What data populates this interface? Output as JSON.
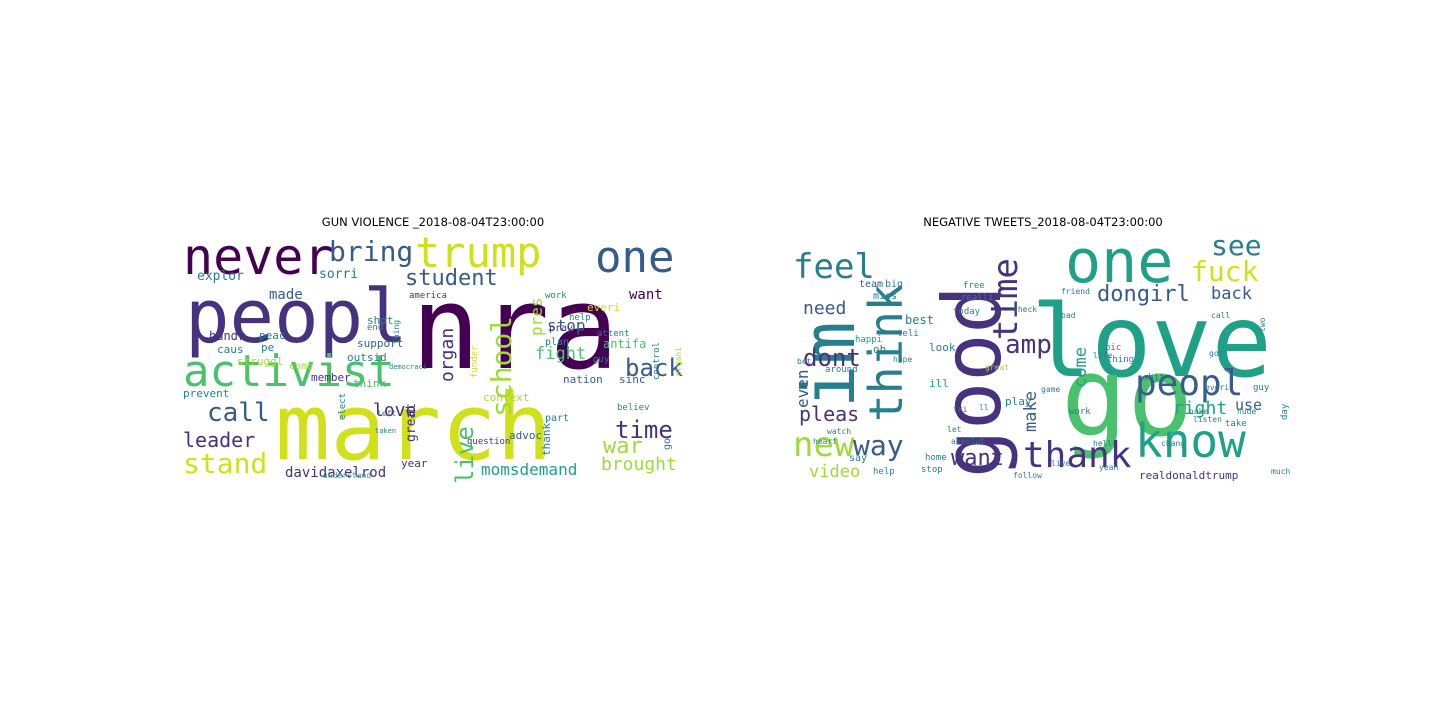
{
  "palette": {
    "v0": "#440154",
    "v1": "#46327e",
    "v2": "#365c8d",
    "v3": "#277f8e",
    "v4": "#1fa187",
    "v5": "#4ac16d",
    "v6": "#a0da39",
    "v7": "#d0e11c"
  },
  "panels": [
    {
      "title": "GUN VIOLENCE _2018-08-04T23:00:00",
      "words": [
        {
          "text": "nra",
          "size": 115,
          "color": "v0"
        },
        {
          "text": "march",
          "size": 92,
          "color": "v7"
        },
        {
          "text": "peopl",
          "size": 74,
          "color": "v1"
        },
        {
          "text": "activist",
          "size": 44,
          "color": "v5"
        },
        {
          "text": "never",
          "size": 50,
          "color": "v0"
        },
        {
          "text": "trump",
          "size": 42,
          "color": "v7"
        },
        {
          "text": "one",
          "size": 44,
          "color": "v2"
        },
        {
          "text": "bring",
          "size": 28,
          "color": "v2"
        },
        {
          "text": "student",
          "size": 22,
          "color": "v2"
        },
        {
          "text": "school",
          "size": 28,
          "color": "v6"
        },
        {
          "text": "back",
          "size": 24,
          "color": "v2"
        },
        {
          "text": "time",
          "size": 24,
          "color": "v1"
        },
        {
          "text": "call",
          "size": 26,
          "color": "v2"
        },
        {
          "text": "stand",
          "size": 28,
          "color": "v7"
        },
        {
          "text": "leader",
          "size": 20,
          "color": "v1"
        },
        {
          "text": "live",
          "size": 24,
          "color": "v5"
        },
        {
          "text": "war",
          "size": 22,
          "color": "v6"
        },
        {
          "text": "love",
          "size": 18,
          "color": "v1"
        },
        {
          "text": "fight",
          "size": 17,
          "color": "v5"
        },
        {
          "text": "stop",
          "size": 16,
          "color": "v2"
        },
        {
          "text": "organ",
          "size": 18,
          "color": "v1"
        },
        {
          "text": "brought",
          "size": 18,
          "color": "v6"
        },
        {
          "text": "momsdemand",
          "size": 16,
          "color": "v4"
        },
        {
          "text": "davidaxelrod",
          "size": 14,
          "color": "v1"
        },
        {
          "text": "made",
          "size": 14,
          "color": "v2"
        },
        {
          "text": "explor",
          "size": 13,
          "color": "v3"
        },
        {
          "text": "sorri",
          "size": 13,
          "color": "v3"
        },
        {
          "text": "want",
          "size": 14,
          "color": "v0"
        },
        {
          "text": "pres",
          "size": 16,
          "color": "v6"
        },
        {
          "text": "antifa",
          "size": 12,
          "color": "v5"
        },
        {
          "text": "shot",
          "size": 11,
          "color": "v3"
        },
        {
          "text": "hundr",
          "size": 12,
          "color": "v1"
        },
        {
          "text": "peac",
          "size": 11,
          "color": "v3"
        },
        {
          "text": "pe",
          "size": 11,
          "color": "v3"
        },
        {
          "text": "caus",
          "size": 11,
          "color": "v3"
        },
        {
          "text": "struggl",
          "size": 11,
          "color": "v6"
        },
        {
          "text": "prevent",
          "size": 11,
          "color": "v3"
        },
        {
          "text": "support",
          "size": 11,
          "color": "v2"
        },
        {
          "text": "outsid",
          "size": 11,
          "color": "v3"
        },
        {
          "text": "member",
          "size": 11,
          "color": "v1"
        },
        {
          "text": "think",
          "size": 11,
          "color": "v5"
        },
        {
          "text": "great",
          "size": 13,
          "color": "v1"
        },
        {
          "text": "year",
          "size": 11,
          "color": "v1"
        },
        {
          "text": "thank",
          "size": 11,
          "color": "v3"
        },
        {
          "text": "advoc",
          "size": 11,
          "color": "v2"
        },
        {
          "text": "nation",
          "size": 11,
          "color": "v2"
        },
        {
          "text": "sinc",
          "size": 11,
          "color": "v2"
        },
        {
          "text": "believ",
          "size": 9,
          "color": "v3"
        },
        {
          "text": "control",
          "size": 9,
          "color": "v3"
        },
        {
          "text": "context",
          "size": 11,
          "color": "v6"
        },
        {
          "text": "part",
          "size": 10,
          "color": "v3"
        },
        {
          "text": "plan",
          "size": 10,
          "color": "v3"
        },
        {
          "text": "pray",
          "size": 10,
          "color": "v1"
        },
        {
          "text": "help",
          "size": 9,
          "color": "v3"
        },
        {
          "text": "everi",
          "size": 11,
          "color": "v7"
        },
        {
          "text": "guy",
          "size": 9,
          "color": "v3"
        },
        {
          "text": "work",
          "size": 9,
          "color": "v3"
        },
        {
          "text": "america",
          "size": 9,
          "color": "v1"
        },
        {
          "text": "end",
          "size": 9,
          "color": "v3"
        },
        {
          "text": "come",
          "size": 10,
          "color": "v6"
        },
        {
          "text": "funder",
          "size": 9,
          "color": "v7"
        },
        {
          "text": "elect",
          "size": 9,
          "color": "v3"
        },
        {
          "text": "question",
          "size": 9,
          "color": "v1"
        },
        {
          "text": "understand",
          "size": 8,
          "color": "v4"
        },
        {
          "text": "left",
          "size": 8,
          "color": "v3"
        },
        {
          "text": "taken",
          "size": 7,
          "color": "v3"
        },
        {
          "text": "thing",
          "size": 8,
          "color": "v3"
        },
        {
          "text": "democraci",
          "size": 7,
          "color": "v3"
        },
        {
          "text": "go",
          "size": 10,
          "color": "v3"
        },
        {
          "text": "attent",
          "size": 9,
          "color": "v3"
        },
        {
          "text": "organi",
          "size": 8,
          "color": "v6"
        }
      ]
    },
    {
      "title": "NEGATIVE TWEETS_2018-08-04T23:00:00",
      "words": [
        {
          "text": "love",
          "size": 100,
          "color": "v4"
        },
        {
          "text": "go",
          "size": 110,
          "color": "v5"
        },
        {
          "text": "good",
          "size": 80,
          "color": "v1"
        },
        {
          "text": "im",
          "size": 72,
          "color": "v3"
        },
        {
          "text": "think",
          "size": 46,
          "color": "v3"
        },
        {
          "text": "one",
          "size": 60,
          "color": "v4"
        },
        {
          "text": "know",
          "size": 46,
          "color": "v4"
        },
        {
          "text": "thank",
          "size": 36,
          "color": "v1"
        },
        {
          "text": "peopl",
          "size": 36,
          "color": "v2"
        },
        {
          "text": "time",
          "size": 34,
          "color": "v1"
        },
        {
          "text": "feel",
          "size": 34,
          "color": "v3"
        },
        {
          "text": "new",
          "size": 34,
          "color": "v6"
        },
        {
          "text": "way",
          "size": 28,
          "color": "v2"
        },
        {
          "text": "see",
          "size": 28,
          "color": "v3"
        },
        {
          "text": "fuck",
          "size": 28,
          "color": "v7"
        },
        {
          "text": "dont",
          "size": 24,
          "color": "v1"
        },
        {
          "text": "amp",
          "size": 26,
          "color": "v1"
        },
        {
          "text": "want",
          "size": 22,
          "color": "v1"
        },
        {
          "text": "dongirl",
          "size": 22,
          "color": "v2"
        },
        {
          "text": "pleas",
          "size": 20,
          "color": "v1"
        },
        {
          "text": "need",
          "size": 18,
          "color": "v2"
        },
        {
          "text": "back",
          "size": 17,
          "color": "v2"
        },
        {
          "text": "right",
          "size": 18,
          "color": "v4"
        },
        {
          "text": "come",
          "size": 17,
          "color": "v4"
        },
        {
          "text": "make",
          "size": 17,
          "color": "v2"
        },
        {
          "text": "even",
          "size": 16,
          "color": "v2"
        },
        {
          "text": "video",
          "size": 17,
          "color": "v6"
        },
        {
          "text": "use",
          "size": 15,
          "color": "v2"
        },
        {
          "text": "realdonaldtrump",
          "size": 11,
          "color": "v1"
        },
        {
          "text": "best",
          "size": 12,
          "color": "v3"
        },
        {
          "text": "look",
          "size": 11,
          "color": "v3"
        },
        {
          "text": "play",
          "size": 11,
          "color": "v3"
        },
        {
          "text": "ill",
          "size": 11,
          "color": "v4"
        },
        {
          "text": "oh",
          "size": 11,
          "color": "v3"
        },
        {
          "text": "miss",
          "size": 10,
          "color": "v3"
        },
        {
          "text": "team",
          "size": 10,
          "color": "v2"
        },
        {
          "text": "big",
          "size": 10,
          "color": "v3"
        },
        {
          "text": "home",
          "size": 9,
          "color": "v3"
        },
        {
          "text": "stop",
          "size": 9,
          "color": "v3"
        },
        {
          "text": "say",
          "size": 10,
          "color": "v3"
        },
        {
          "text": "help",
          "size": 9,
          "color": "v3"
        },
        {
          "text": "today",
          "size": 9,
          "color": "v3"
        },
        {
          "text": "happi",
          "size": 9,
          "color": "v4"
        },
        {
          "text": "teli",
          "size": 9,
          "color": "v3"
        },
        {
          "text": "pic",
          "size": 9,
          "color": "v3"
        },
        {
          "text": "thing",
          "size": 9,
          "color": "v3"
        },
        {
          "text": "work",
          "size": 9,
          "color": "v3"
        },
        {
          "text": "shit",
          "size": 9,
          "color": "v3"
        },
        {
          "text": "take",
          "size": 9,
          "color": "v3"
        },
        {
          "text": "guy",
          "size": 9,
          "color": "v3"
        },
        {
          "text": "day",
          "size": 9,
          "color": "v3"
        },
        {
          "text": "heart",
          "size": 8,
          "color": "v3"
        },
        {
          "text": "around",
          "size": 9,
          "color": "v3"
        },
        {
          "text": "free",
          "size": 9,
          "color": "v3"
        },
        {
          "text": "realli",
          "size": 9,
          "color": "v3"
        },
        {
          "text": "hope",
          "size": 8,
          "color": "v3"
        },
        {
          "text": "great",
          "size": 8,
          "color": "v6"
        },
        {
          "text": "check",
          "size": 8,
          "color": "v3"
        },
        {
          "text": "bet",
          "size": 8,
          "color": "v3"
        },
        {
          "text": "watch",
          "size": 8,
          "color": "v3"
        },
        {
          "text": "nude",
          "size": 8,
          "color": "v3"
        },
        {
          "text": "listen",
          "size": 8,
          "color": "v3"
        },
        {
          "text": "hell",
          "size": 8,
          "color": "v3"
        },
        {
          "text": "yeah",
          "size": 8,
          "color": "v3"
        },
        {
          "text": "much",
          "size": 8,
          "color": "v3"
        },
        {
          "text": "follow",
          "size": 8,
          "color": "v3"
        },
        {
          "text": "game",
          "size": 8,
          "color": "v3"
        },
        {
          "text": "absolut",
          "size": 8,
          "color": "v3"
        },
        {
          "text": "let",
          "size": 8,
          "color": "v3"
        },
        {
          "text": "tri",
          "size": 8,
          "color": "v3"
        },
        {
          "text": "ll",
          "size": 8,
          "color": "v3"
        },
        {
          "text": "two",
          "size": 8,
          "color": "v3"
        },
        {
          "text": "got",
          "size": 8,
          "color": "v3"
        },
        {
          "text": "everi",
          "size": 8,
          "color": "v3"
        },
        {
          "text": "nake",
          "size": 8,
          "color": "v3"
        },
        {
          "text": "chang",
          "size": 8,
          "color": "v3"
        },
        {
          "text": "live",
          "size": 8,
          "color": "v3"
        },
        {
          "text": "life",
          "size": 8,
          "color": "v3"
        },
        {
          "text": "friend",
          "size": 8,
          "color": "v3"
        },
        {
          "text": "call",
          "size": 8,
          "color": "v3"
        },
        {
          "text": "bad",
          "size": 8,
          "color": "v3"
        }
      ]
    }
  ]
}
